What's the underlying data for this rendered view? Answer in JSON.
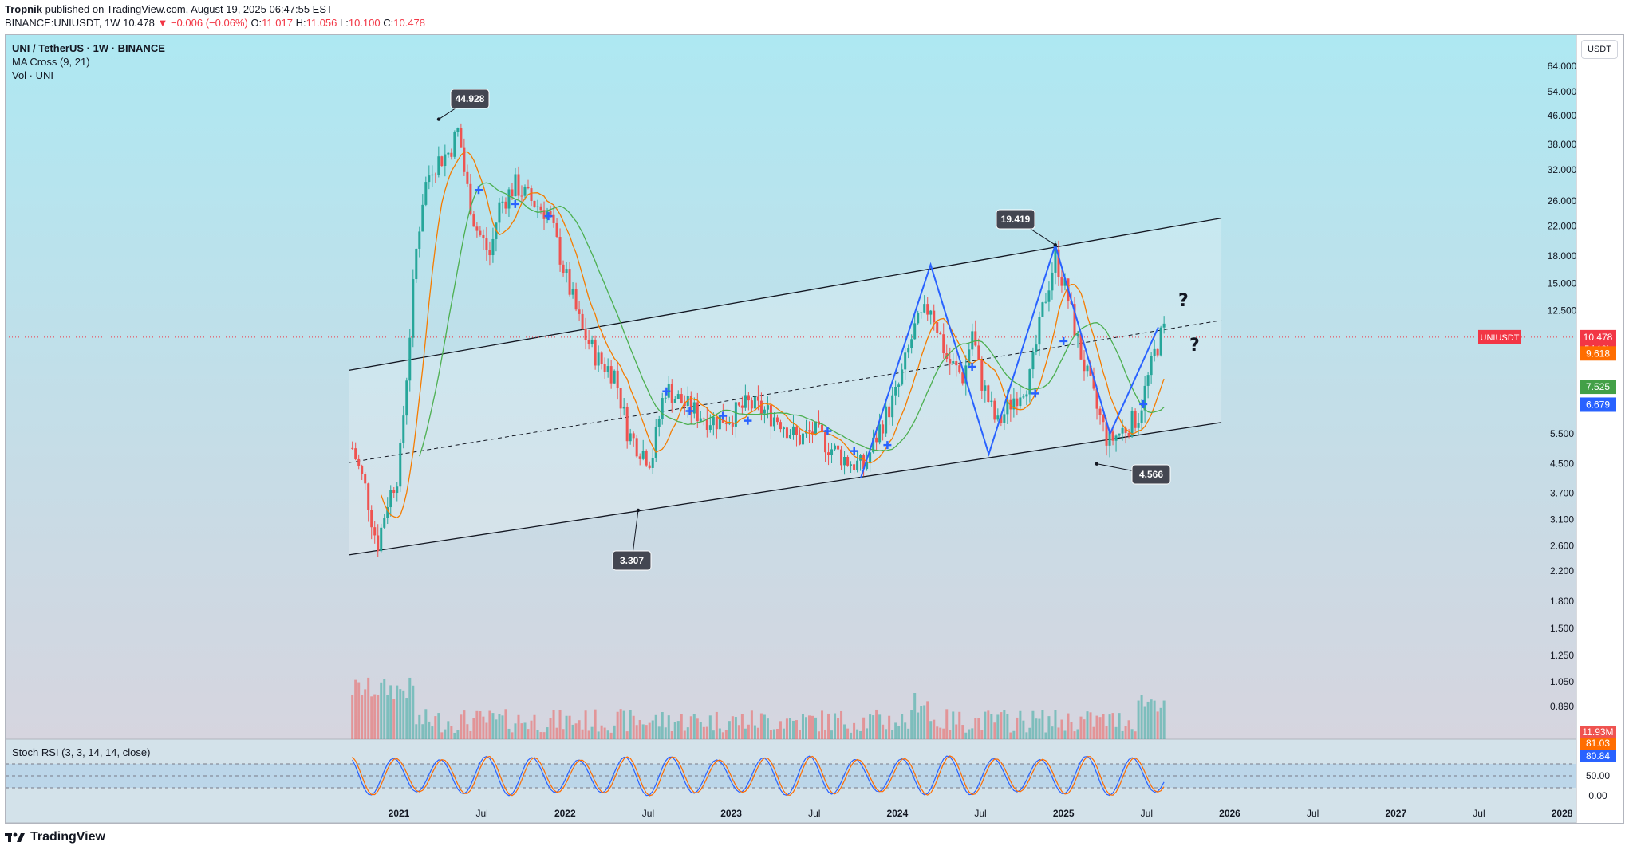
{
  "header": {
    "published": "Tropnik published on TradingView.com, August 19, 2025 06:47:55 EST",
    "author": "Tropnik",
    "rest": " published on TradingView.com, August 19, 2025 06:47:55 EST",
    "symbol": "BINANCE:UNIUSDT, 1W",
    "last": "10.478",
    "change": "▼ −0.006 (−0.06%)",
    "o_label": "O:",
    "o": "11.017",
    "h_label": "H:",
    "h": "11.056",
    "l_label": "L:",
    "l": "10.100",
    "c_label": "C:",
    "c": "10.478"
  },
  "legend": {
    "title": "UNI / TetherUS · 1W · BINANCE",
    "ma": "MA Cross (9, 21)",
    "vol": "Vol · UNI"
  },
  "currency_button": "USDT",
  "rsi_label": "Stoch RSI (3, 3, 14, 14, close)",
  "footer": "TradingView",
  "colors": {
    "up": "#26a69a",
    "down": "#ef5350",
    "ma_fast": "#f57c00",
    "ma_slow": "#4caf50",
    "pattern": "#2962ff",
    "bg_top": "#aee8f2",
    "bg_bottom": "#d7d4e0",
    "stoch_k": "#2962ff",
    "stoch_d": "#ff6d00"
  },
  "chart_data": {
    "type": "candlestick",
    "price_axis_ticks": [
      "64.000",
      "54.000",
      "46.000",
      "38.000",
      "32.000",
      "26.000",
      "22.000",
      "18.000",
      "15.000",
      "12.500",
      "10.478",
      "9.618",
      "7.525",
      "6.679",
      "5.500",
      "4.500",
      "3.700",
      "3.100",
      "2.600",
      "2.200",
      "1.800",
      "1.500",
      "1.250",
      "1.050",
      "0.890"
    ],
    "time_axis_ticks": [
      "2021",
      "Jul",
      "2022",
      "Jul",
      "2023",
      "Jul",
      "2024",
      "Jul",
      "2025",
      "Jul",
      "2026",
      "Jul",
      "2027",
      "Jul",
      "2028"
    ],
    "price_labels": [
      {
        "text": "UNIUSDT",
        "value": 10.478,
        "color": "#f23645"
      },
      {
        "text": "10.478",
        "sub": "5d 13h",
        "value": 10.478,
        "color": "#f23645"
      },
      {
        "text": "9.618",
        "value": 9.618,
        "color": "#ff6d00"
      },
      {
        "text": "7.525",
        "value": 7.525,
        "color": "#43a047"
      },
      {
        "text": "6.679",
        "value": 6.679,
        "color": "#2962ff"
      }
    ],
    "annotations": [
      {
        "text": "44.928",
        "x": "2021-05",
        "y": 44.928
      },
      {
        "text": "19.419",
        "x": "2024-12",
        "y": 19.419
      },
      {
        "text": "3.307",
        "x": "2022-06",
        "y": 3.307
      },
      {
        "text": "4.566",
        "x": "2025-04",
        "y": 4.566
      }
    ],
    "question_marks": [
      "?",
      "?"
    ],
    "volume_label": "11.93M",
    "stoch_rsi": {
      "ticks": [
        "50.00",
        "0.00"
      ],
      "k_label": "81.03",
      "d_label": "80.84"
    }
  }
}
